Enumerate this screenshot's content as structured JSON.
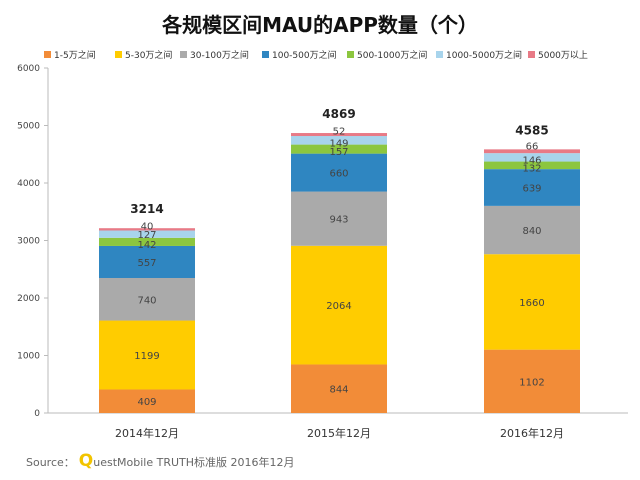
{
  "chart_data": {
    "type": "bar",
    "stacked": true,
    "title": "各规模区间MAU的APP数量（个）",
    "categories": [
      "2014年12月",
      "2015年12月",
      "2016年12月"
    ],
    "ylim": [
      0,
      6000
    ],
    "yticks": [
      0,
      1000,
      2000,
      3000,
      4000,
      5000,
      6000
    ],
    "legend_position": "top",
    "series": [
      {
        "name": "1-5万之间",
        "color": "#f28c38",
        "values": [
          409,
          844,
          1102
        ]
      },
      {
        "name": "5-30万之间",
        "color": "#ffcc00",
        "values": [
          1199,
          2064,
          1660
        ]
      },
      {
        "name": "30-100万之间",
        "color": "#aaaaaa",
        "values": [
          740,
          943,
          840
        ]
      },
      {
        "name": "100-500万之间",
        "color": "#2f86c1",
        "values": [
          557,
          660,
          639
        ]
      },
      {
        "name": "500-1000万之间",
        "color": "#8cc63f",
        "values": [
          142,
          157,
          132
        ]
      },
      {
        "name": "1000-5000万之间",
        "color": "#a8d4ec",
        "values": [
          127,
          149,
          146
        ]
      },
      {
        "name": "5000万以上",
        "color": "#e87a86",
        "values": [
          40,
          52,
          66
        ]
      }
    ],
    "totals": [
      3214,
      4869,
      4585
    ]
  },
  "source": {
    "prefix": "Source：",
    "q": "Q",
    "rest": "uestMobile TRUTH标准版 2016年12月"
  }
}
